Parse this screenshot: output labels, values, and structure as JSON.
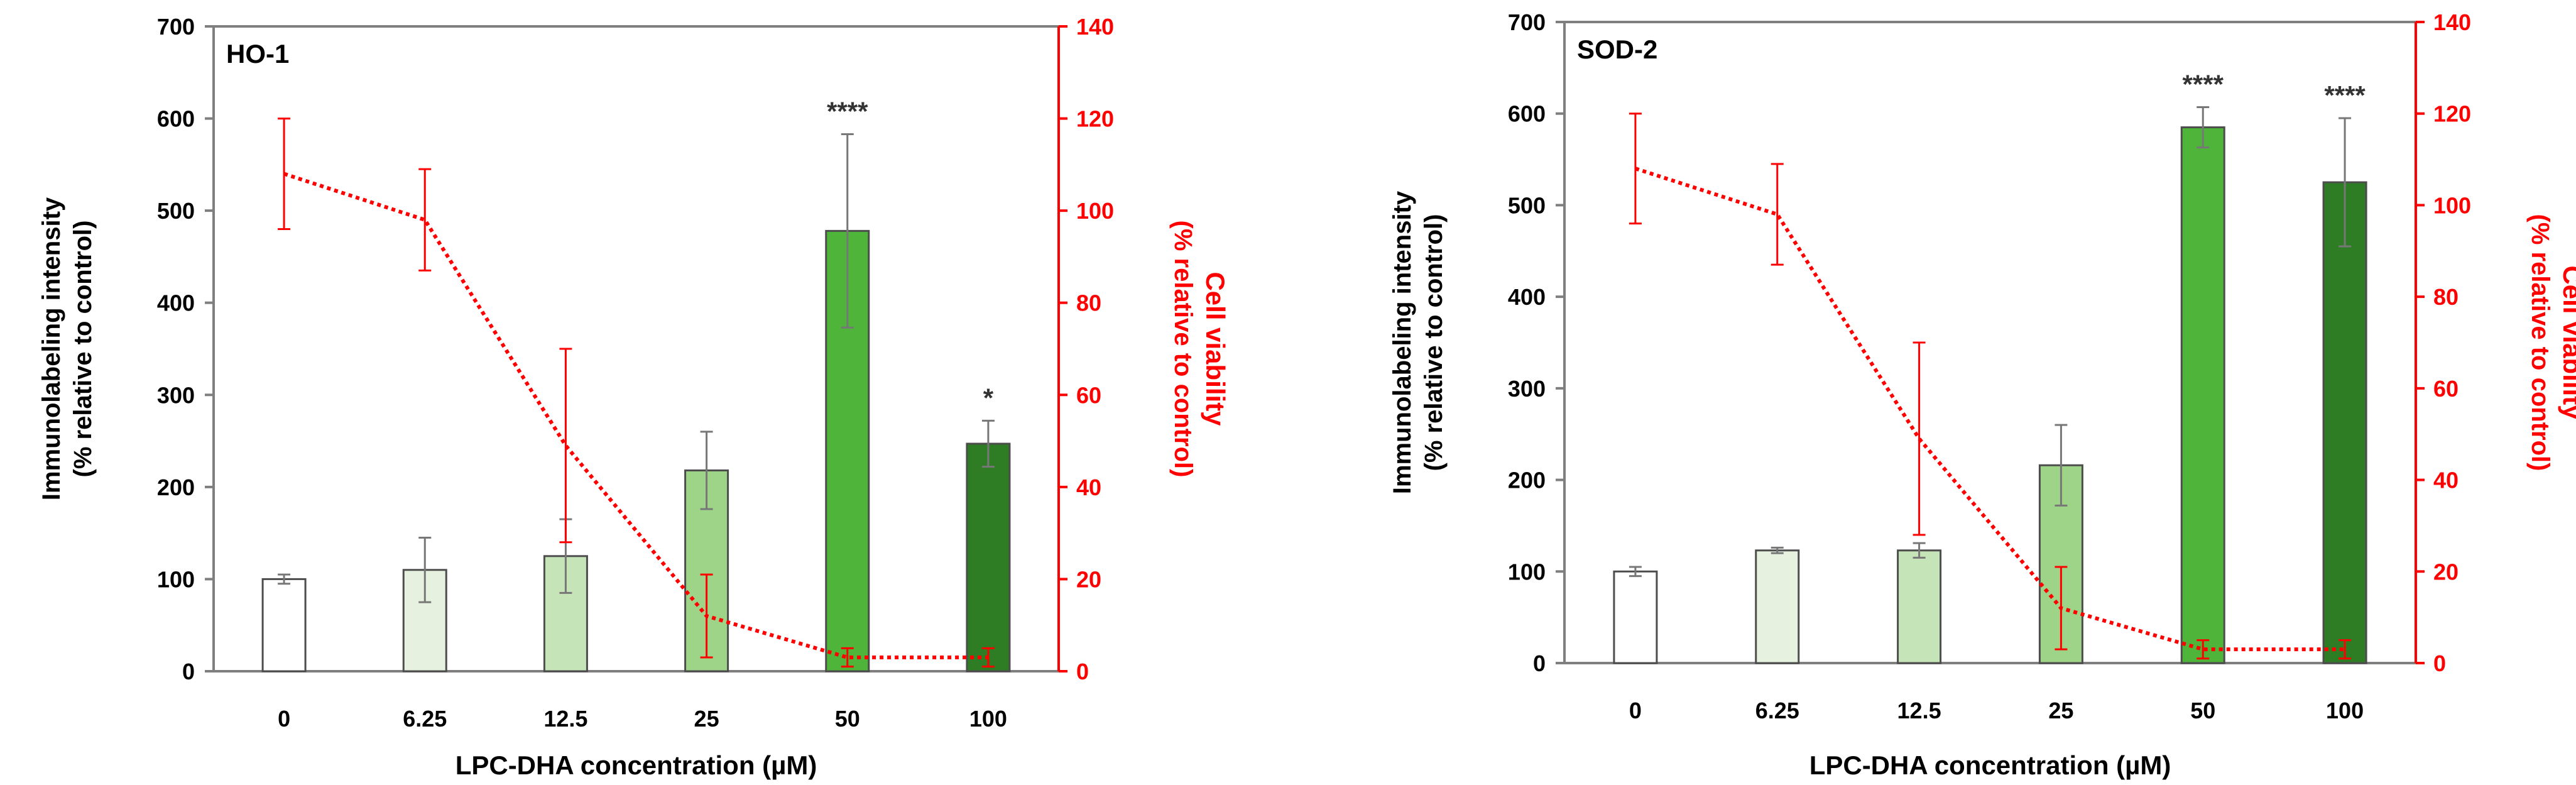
{
  "chart_data": [
    {
      "type": "bar",
      "title": "HO-1",
      "xlabel": "LPC-DHA concentration (µM)",
      "ylabel": "Immunolabeling intensity",
      "ylabel_sub": "(% relative to control)",
      "y2label": "Cell viability",
      "y2label_sub": "(% relative to control)",
      "ylim": [
        0,
        700
      ],
      "y_ticks": [
        "0",
        "100",
        "200",
        "300",
        "400",
        "500",
        "600",
        "700"
      ],
      "y2lim": [
        0,
        140
      ],
      "y2_ticks": [
        "0",
        "20",
        "40",
        "60",
        "80",
        "100",
        "120",
        "140"
      ],
      "categories": [
        "0",
        "6.25",
        "12.5",
        "25",
        "50",
        "100"
      ],
      "series": [
        {
          "name": "Immunolabeling intensity",
          "axis": "left",
          "values": [
            100,
            110,
            125,
            218,
            478,
            247
          ],
          "errors": [
            5,
            35,
            40,
            42,
            105,
            25
          ],
          "colors": [
            "#ffffff",
            "#e6f2df",
            "#c5e4b8",
            "#9ed488",
            "#4fb43a",
            "#2e7d24"
          ]
        },
        {
          "name": "Cell viability",
          "axis": "right",
          "line_color": "#ff0000",
          "values": [
            108,
            98,
            49,
            12,
            3,
            3
          ],
          "errors": [
            12,
            11,
            21,
            9,
            2,
            2
          ]
        }
      ],
      "significance": [
        "",
        "",
        "",
        "",
        "****",
        "*"
      ]
    },
    {
      "type": "bar",
      "title": "SOD-2",
      "xlabel": "LPC-DHA concentration (µM)",
      "ylabel": "Immunolabeling intensity",
      "ylabel_sub": "(% relative to control)",
      "y2label": "Cell viability",
      "y2label_sub": "(% relative to control)",
      "ylim": [
        0,
        700
      ],
      "y_ticks": [
        "0",
        "100",
        "200",
        "300",
        "400",
        "500",
        "600",
        "700"
      ],
      "y2lim": [
        0,
        140
      ],
      "y2_ticks": [
        "0",
        "20",
        "40",
        "60",
        "80",
        "100",
        "120",
        "140"
      ],
      "categories": [
        "0",
        "6.25",
        "12.5",
        "25",
        "50",
        "100"
      ],
      "series": [
        {
          "name": "Immunolabeling intensity",
          "axis": "left",
          "values": [
            100,
            123,
            123,
            216,
            585,
            525
          ],
          "errors": [
            5,
            3,
            8,
            44,
            22,
            70
          ],
          "colors": [
            "#ffffff",
            "#e6f2df",
            "#c5e4b8",
            "#9ed488",
            "#4fb43a",
            "#2e7d24"
          ]
        },
        {
          "name": "Cell viability",
          "axis": "right",
          "line_color": "#ff0000",
          "values": [
            108,
            98,
            49,
            12,
            3,
            3
          ],
          "errors": [
            12,
            11,
            21,
            9,
            2,
            2
          ]
        }
      ],
      "significance": [
        "",
        "",
        "",
        "",
        "****",
        "****"
      ]
    }
  ]
}
